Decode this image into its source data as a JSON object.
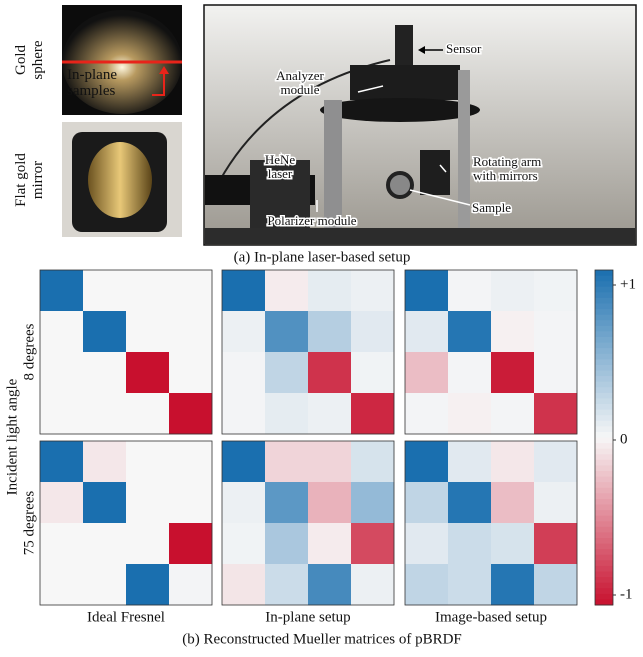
{
  "figure_a": {
    "caption": "(a) In-plane laser-based setup",
    "side_labels": [
      [
        "Gold",
        "sphere"
      ],
      [
        "Flat gold",
        "mirror"
      ]
    ],
    "sphere_annotation": [
      "In-plane",
      "samples"
    ],
    "setup_annotations": [
      [
        "Sensor"
      ],
      [
        "Analyzer",
        "module"
      ],
      [
        "HeNe",
        "laser"
      ],
      [
        "Rotating arm",
        "with mirrors"
      ],
      [
        "Sample"
      ],
      [
        "Polarizer module"
      ]
    ]
  },
  "chart_data": {
    "type": "heatmap",
    "caption": "(b) Reconstructed Mueller matrices of pBRDF",
    "y_label": "Incident light angle",
    "row_labels": [
      "8 degrees",
      "75 degrees"
    ],
    "column_labels": [
      "Ideal Fresnel",
      "In-plane setup",
      "Image-based setup"
    ],
    "matrices": [
      [
        [
          [
            1,
            0,
            0,
            0
          ],
          [
            0,
            1,
            0,
            0
          ],
          [
            0,
            0,
            -1,
            0
          ],
          [
            0,
            0,
            0,
            -1
          ]
        ],
        [
          [
            1,
            -0.05,
            0.08,
            0.05
          ],
          [
            0.05,
            0.75,
            0.3,
            0.1
          ],
          [
            0.02,
            0.25,
            -0.85,
            0.03
          ],
          [
            0.02,
            0.08,
            0.05,
            -0.9
          ]
        ],
        [
          [
            1,
            0.02,
            0.05,
            0.03
          ],
          [
            0.1,
            0.95,
            -0.03,
            0.02
          ],
          [
            -0.25,
            0.02,
            -0.95,
            0.02
          ],
          [
            0.02,
            -0.03,
            0.02,
            -0.85
          ]
        ]
      ],
      [
        [
          [
            1,
            -0.07,
            0,
            0
          ],
          [
            -0.07,
            1,
            0,
            0
          ],
          [
            0,
            0,
            0,
            -1
          ],
          [
            0,
            0,
            1,
            0.02
          ]
        ],
        [
          [
            1,
            -0.15,
            -0.15,
            0.15
          ],
          [
            0.05,
            0.7,
            -0.3,
            0.45
          ],
          [
            0.03,
            0.35,
            -0.05,
            -0.75
          ],
          [
            -0.08,
            0.2,
            0.8,
            0.05
          ]
        ],
        [
          [
            1,
            0.1,
            -0.07,
            0.1
          ],
          [
            0.25,
            0.95,
            -0.25,
            0.05
          ],
          [
            0.1,
            0.2,
            0.15,
            -0.8
          ],
          [
            0.25,
            0.2,
            0.95,
            0.25
          ]
        ]
      ]
    ],
    "colormap": [
      "#c8102e",
      "#f7f7f7",
      "#1a6faf"
    ],
    "clim": [
      -1,
      1
    ],
    "colorbar_ticks": [
      {
        "value": 1,
        "label": "+1"
      },
      0,
      -1
    ]
  }
}
